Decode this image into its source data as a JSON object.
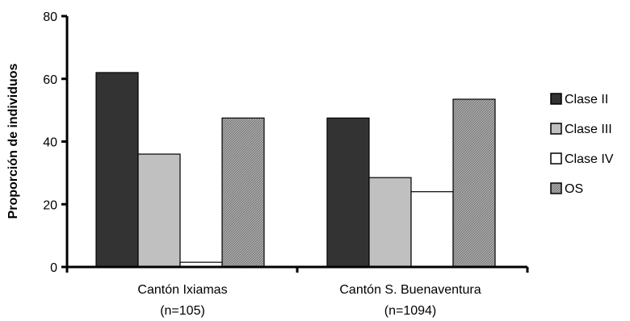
{
  "chart_data": {
    "type": "bar",
    "ylabel": "Proporción de individuos",
    "xlabel": "",
    "ylim": [
      0,
      80
    ],
    "yticks": [
      0,
      20,
      40,
      60,
      80
    ],
    "grid": false,
    "legend_position": "right",
    "categories": [
      {
        "name": "Cantón Ixiamas",
        "sub": "(n=105)"
      },
      {
        "name": "Cantón S. Buenaventura",
        "sub": "(n=1094)"
      }
    ],
    "series": [
      {
        "name": "Clase II",
        "values": [
          62,
          47.5
        ],
        "color": "#333333",
        "pattern": "solid"
      },
      {
        "name": "Clase III",
        "values": [
          36,
          28.5
        ],
        "color": "#c0c0c0",
        "pattern": "solid"
      },
      {
        "name": "Clase IV",
        "values": [
          1.5,
          24
        ],
        "color": "#ffffff",
        "pattern": "solid"
      },
      {
        "name": "OS",
        "values": [
          47.5,
          53.5
        ],
        "color": "#999999",
        "pattern": "crosshatch"
      }
    ]
  }
}
